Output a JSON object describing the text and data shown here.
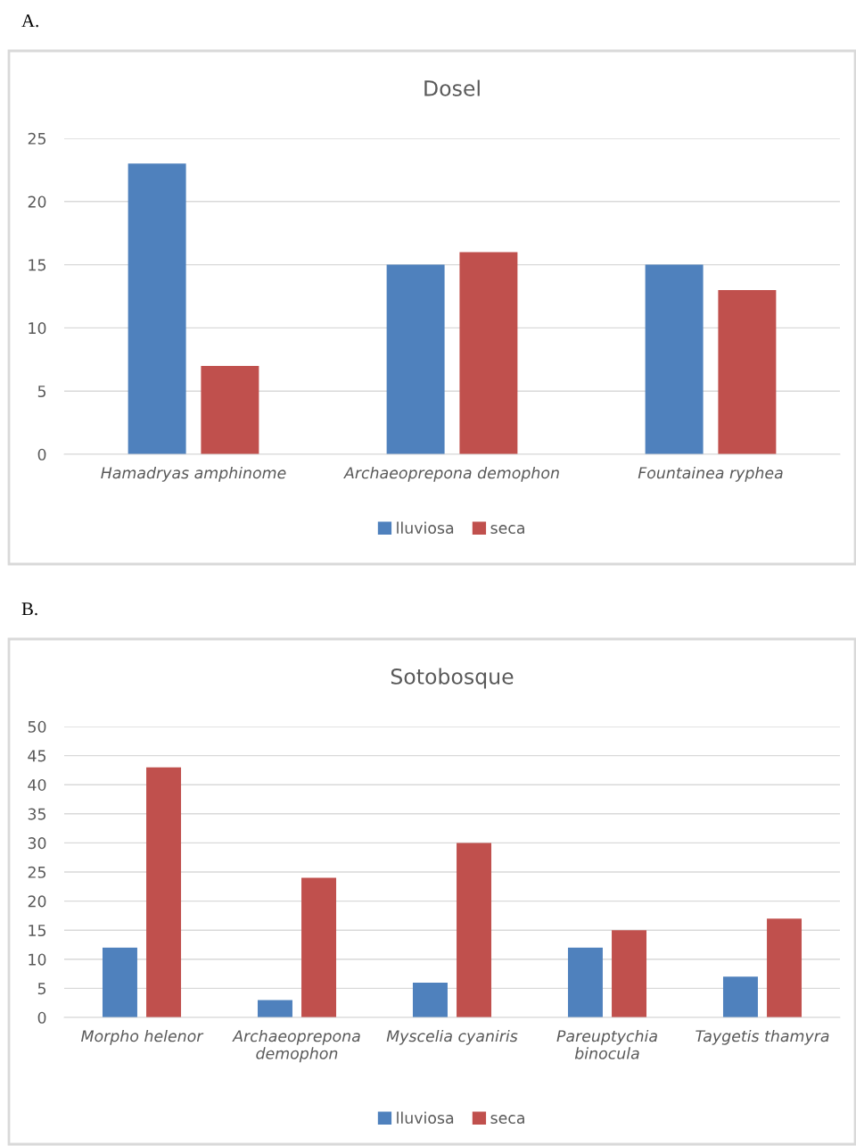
{
  "chart_data": [
    {
      "type": "bar",
      "title": "Dosel",
      "annotations": [
        "A."
      ],
      "categories": [
        "Hamadryas amphinome",
        "Archaeoprepona demophon",
        "Fountainea ryphea"
      ],
      "series": [
        {
          "name": "lluviosa",
          "color": "#4f81bd",
          "values": [
            23,
            15,
            15
          ]
        },
        {
          "name": "seca",
          "color": "#c0504d",
          "values": [
            7,
            16,
            13
          ]
        }
      ],
      "ylim": [
        0,
        25
      ],
      "yticks": [
        0,
        5,
        10,
        15,
        20,
        25
      ],
      "grid": "y",
      "legend": "bottom"
    },
    {
      "type": "bar",
      "title": "Sotobosque",
      "annotations": [
        "B."
      ],
      "categories": [
        "Morpho helenor",
        "Archaeoprepona\ndemophon",
        "Myscelia cyaniris",
        "Pareuptychia\nbinocula",
        "Taygetis thamyra"
      ],
      "series": [
        {
          "name": "lluviosa",
          "color": "#4f81bd",
          "values": [
            12,
            3,
            6,
            12,
            7
          ]
        },
        {
          "name": "seca",
          "color": "#c0504d",
          "values": [
            43,
            24,
            30,
            15,
            17
          ]
        }
      ],
      "ylim": [
        0,
        50
      ],
      "yticks": [
        0,
        5,
        10,
        15,
        20,
        25,
        30,
        35,
        40,
        45,
        50
      ],
      "grid": "y",
      "legend": "bottom"
    }
  ]
}
